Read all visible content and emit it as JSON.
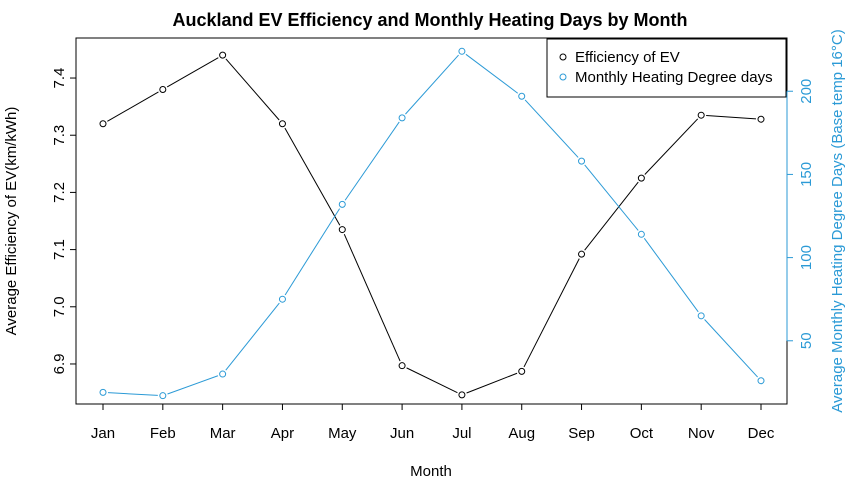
{
  "chart_data": {
    "type": "line",
    "title": "Auckland EV Efficiency and Monthly Heating Days by Month",
    "xlabel": "Month",
    "ylabel_left": "Average Efficiency of EV(km/kWh)",
    "ylabel_right": "Average Monthly Heating Degree Days (Base temp 16°C)",
    "categories": [
      "Jan",
      "Feb",
      "Mar",
      "Apr",
      "May",
      "Jun",
      "Jul",
      "Aug",
      "Sep",
      "Oct",
      "Nov",
      "Dec"
    ],
    "y_left": {
      "lim": [
        6.83,
        7.47
      ],
      "ticks": [
        6.9,
        7.0,
        7.1,
        7.2,
        7.3,
        7.4
      ],
      "tick_labels": [
        "6.9",
        "7.0",
        "7.1",
        "7.2",
        "7.3",
        "7.4"
      ]
    },
    "y_right": {
      "lim": [
        12,
        232
      ],
      "ticks": [
        50,
        100,
        150,
        200
      ],
      "tick_labels": [
        "50",
        "100",
        "150",
        "200"
      ]
    },
    "series": [
      {
        "name": "Efficiency of EV",
        "axis": "left",
        "color": "#000000",
        "values": [
          7.32,
          7.38,
          7.44,
          7.32,
          7.135,
          6.897,
          6.846,
          6.887,
          7.092,
          7.225,
          7.335,
          7.328
        ]
      },
      {
        "name": "Monthly Heating Degree days",
        "axis": "right",
        "color": "#2B9AD6",
        "values": [
          19,
          17,
          30,
          75,
          132,
          184,
          224,
          197,
          158,
          114,
          65,
          26
        ]
      }
    ],
    "legend_position": "top-right",
    "grid": false
  }
}
